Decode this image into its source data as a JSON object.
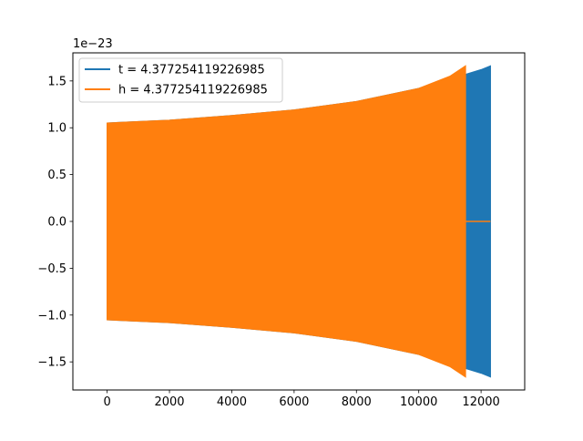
{
  "chart_data": {
    "type": "area",
    "title": "",
    "xlabel": "",
    "ylabel": "",
    "y_offset_label": "1e−23",
    "xlim": [
      -1100,
      13400
    ],
    "ylim": [
      -1.8,
      1.8
    ],
    "x_ticks": [
      0,
      2000,
      4000,
      6000,
      8000,
      10000,
      12000
    ],
    "x_tick_labels": [
      "0",
      "2000",
      "4000",
      "6000",
      "8000",
      "10000",
      "12000"
    ],
    "y_ticks": [
      -1.5,
      -1.0,
      -0.5,
      0.0,
      0.5,
      1.0,
      1.5
    ],
    "y_tick_labels": [
      "−1.5",
      "−1.0",
      "−0.5",
      "0.0",
      "0.5",
      "1.0",
      "1.5"
    ],
    "legend_position": "top-left",
    "grid": false,
    "series": [
      {
        "name": "t = 4.377254119226985",
        "color": "#1f77b4",
        "envelope_x": [
          0,
          2000,
          4000,
          6000,
          8000,
          10000,
          11000,
          11500,
          12000,
          12300
        ],
        "envelope_upper": [
          1.05,
          1.08,
          1.13,
          1.19,
          1.28,
          1.42,
          1.53,
          1.57,
          1.62,
          1.66
        ],
        "envelope_lower": [
          -1.05,
          -1.08,
          -1.13,
          -1.19,
          -1.28,
          -1.42,
          -1.53,
          -1.57,
          -1.62,
          -1.66
        ]
      },
      {
        "name": "h = 4.377254119226985",
        "color": "#ff7f0e",
        "envelope_x": [
          0,
          2000,
          4000,
          6000,
          8000,
          10000,
          11000,
          11500
        ],
        "envelope_upper": [
          1.05,
          1.08,
          1.13,
          1.19,
          1.28,
          1.42,
          1.55,
          1.66
        ],
        "envelope_lower": [
          -1.05,
          -1.08,
          -1.13,
          -1.19,
          -1.28,
          -1.42,
          -1.55,
          -1.66
        ],
        "tail_x": [
          11500,
          12300
        ],
        "tail_y": [
          0,
          0
        ]
      }
    ]
  }
}
